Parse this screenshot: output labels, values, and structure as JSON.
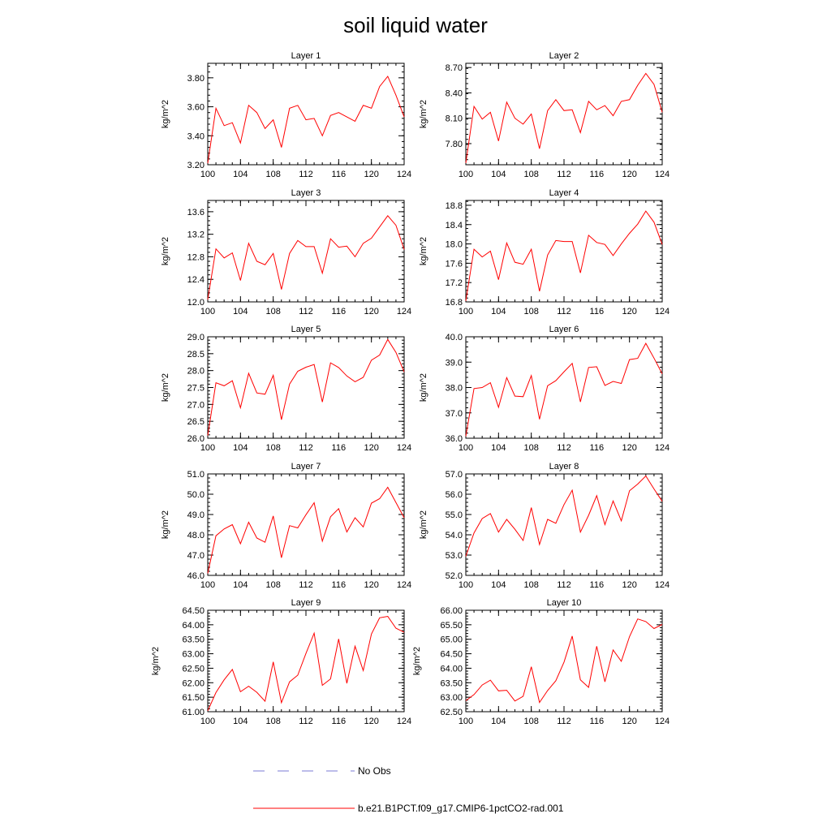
{
  "figure": {
    "title": "soil liquid water"
  },
  "legend": {
    "entries": [
      {
        "label": "No Obs",
        "color": "#7b7bd6",
        "style": "dashed"
      },
      {
        "label": "b.e21.B1PCT.f09_g17.CMIP6-1pctCO2-rad.001",
        "color": "#ff0000",
        "style": "solid"
      }
    ]
  },
  "chart_data": [
    {
      "type": "line",
      "title": "Layer 1",
      "ylabel": "kg/m^2",
      "xlim": [
        100,
        124
      ],
      "xticks": [
        "100",
        "104",
        "108",
        "112",
        "116",
        "120",
        "124"
      ],
      "ylim": [
        3.2,
        3.9
      ],
      "yticks": [
        "3.20",
        "3.40",
        "3.60",
        "3.80"
      ],
      "series": [
        {
          "color": "#ff0000",
          "x": [
            100,
            101,
            102,
            103,
            104,
            105,
            106,
            107,
            108,
            109,
            110,
            111,
            112,
            113,
            114,
            115,
            116,
            117,
            118,
            119,
            120,
            121,
            122,
            123,
            124
          ],
          "values": [
            3.21,
            3.59,
            3.47,
            3.49,
            3.35,
            3.61,
            3.56,
            3.45,
            3.51,
            3.32,
            3.59,
            3.61,
            3.51,
            3.52,
            3.4,
            3.54,
            3.56,
            3.53,
            3.5,
            3.61,
            3.59,
            3.74,
            3.81,
            3.68,
            3.53
          ]
        }
      ]
    },
    {
      "type": "line",
      "title": "Layer 2",
      "ylabel": "kg/m^2",
      "xlim": [
        100,
        124
      ],
      "xticks": [
        "100",
        "104",
        "108",
        "112",
        "116",
        "120",
        "124"
      ],
      "ylim": [
        7.55,
        8.75
      ],
      "yticks": [
        "7.80",
        "8.10",
        "8.40",
        "8.70"
      ],
      "series": [
        {
          "color": "#ff0000",
          "x": [
            100,
            101,
            102,
            103,
            104,
            105,
            106,
            107,
            108,
            109,
            110,
            111,
            112,
            113,
            114,
            115,
            116,
            117,
            118,
            119,
            120,
            121,
            122,
            123,
            124
          ],
          "values": [
            7.57,
            8.24,
            8.09,
            8.17,
            7.83,
            8.29,
            8.1,
            8.03,
            8.15,
            7.74,
            8.19,
            8.32,
            8.19,
            8.2,
            7.93,
            8.3,
            8.2,
            8.25,
            8.13,
            8.3,
            8.32,
            8.49,
            8.63,
            8.5,
            8.17
          ]
        }
      ]
    },
    {
      "type": "line",
      "title": "Layer 3",
      "ylabel": "kg/m^2",
      "xlim": [
        100,
        124
      ],
      "xticks": [
        "100",
        "104",
        "108",
        "112",
        "116",
        "120",
        "124"
      ],
      "ylim": [
        12.0,
        13.8
      ],
      "yticks": [
        "12.0",
        "12.4",
        "12.8",
        "13.2",
        "13.6"
      ],
      "series": [
        {
          "color": "#ff0000",
          "x": [
            100,
            101,
            102,
            103,
            104,
            105,
            106,
            107,
            108,
            109,
            110,
            111,
            112,
            113,
            114,
            115,
            116,
            117,
            118,
            119,
            120,
            121,
            122,
            123,
            124
          ],
          "values": [
            12.04,
            12.94,
            12.78,
            12.87,
            12.38,
            13.04,
            12.72,
            12.66,
            12.86,
            12.22,
            12.86,
            13.09,
            12.98,
            12.98,
            12.51,
            13.12,
            12.97,
            12.99,
            12.8,
            13.04,
            13.13,
            13.33,
            13.53,
            13.36,
            12.93
          ]
        }
      ]
    },
    {
      "type": "line",
      "title": "Layer 4",
      "ylabel": "kg/m^2",
      "xlim": [
        100,
        124
      ],
      "xticks": [
        "100",
        "104",
        "108",
        "112",
        "116",
        "120",
        "124"
      ],
      "ylim": [
        16.8,
        18.9
      ],
      "yticks": [
        "16.8",
        "17.2",
        "17.6",
        "18.0",
        "18.4",
        "18.8"
      ],
      "series": [
        {
          "color": "#ff0000",
          "x": [
            100,
            101,
            102,
            103,
            104,
            105,
            106,
            107,
            108,
            109,
            110,
            111,
            112,
            113,
            114,
            115,
            116,
            117,
            118,
            119,
            120,
            121,
            122,
            123,
            124
          ],
          "values": [
            16.82,
            17.89,
            17.73,
            17.85,
            17.26,
            18.02,
            17.62,
            17.58,
            17.89,
            17.02,
            17.77,
            18.07,
            18.05,
            18.05,
            17.4,
            18.18,
            18.03,
            17.99,
            17.76,
            18.0,
            18.22,
            18.41,
            18.68,
            18.45,
            17.99
          ]
        }
      ]
    },
    {
      "type": "line",
      "title": "Layer 5",
      "ylabel": "kg/m^2",
      "xlim": [
        100,
        124
      ],
      "xticks": [
        "100",
        "104",
        "108",
        "112",
        "116",
        "120",
        "124"
      ],
      "ylim": [
        26.0,
        29.0
      ],
      "yticks": [
        "26.0",
        "26.5",
        "27.0",
        "27.5",
        "28.0",
        "28.5",
        "29.0"
      ],
      "series": [
        {
          "color": "#ff0000",
          "x": [
            100,
            101,
            102,
            103,
            104,
            105,
            106,
            107,
            108,
            109,
            110,
            111,
            112,
            113,
            114,
            115,
            116,
            117,
            118,
            119,
            120,
            121,
            122,
            123,
            124
          ],
          "values": [
            26.08,
            27.64,
            27.55,
            27.7,
            26.9,
            27.92,
            27.34,
            27.3,
            27.86,
            26.55,
            27.6,
            27.98,
            28.1,
            28.18,
            27.07,
            28.23,
            28.09,
            27.84,
            27.67,
            27.8,
            28.31,
            28.46,
            28.92,
            28.54,
            27.96
          ]
        }
      ]
    },
    {
      "type": "line",
      "title": "Layer 6",
      "ylabel": "kg/m^2",
      "xlim": [
        100,
        124
      ],
      "xticks": [
        "100",
        "104",
        "108",
        "112",
        "116",
        "120",
        "124"
      ],
      "ylim": [
        36.0,
        40.0
      ],
      "yticks": [
        "36.0",
        "37.0",
        "38.0",
        "39.0",
        "40.0"
      ],
      "series": [
        {
          "color": "#ff0000",
          "x": [
            100,
            101,
            102,
            103,
            104,
            105,
            106,
            107,
            108,
            109,
            110,
            111,
            112,
            113,
            114,
            115,
            116,
            117,
            118,
            119,
            120,
            121,
            122,
            123,
            124
          ],
          "values": [
            36.08,
            37.96,
            38.0,
            38.19,
            37.22,
            38.39,
            37.66,
            37.64,
            38.47,
            36.75,
            38.07,
            38.27,
            38.62,
            38.95,
            37.43,
            38.79,
            38.82,
            38.08,
            38.24,
            38.16,
            39.1,
            39.15,
            39.74,
            39.16,
            38.54
          ]
        }
      ]
    },
    {
      "type": "line",
      "title": "Layer 7",
      "ylabel": "kg/m^2",
      "xlim": [
        100,
        124
      ],
      "xticks": [
        "100",
        "104",
        "108",
        "112",
        "116",
        "120",
        "124"
      ],
      "ylim": [
        46.0,
        51.0
      ],
      "yticks": [
        "46.0",
        "47.0",
        "48.0",
        "49.0",
        "50.0",
        "51.0"
      ],
      "series": [
        {
          "color": "#ff0000",
          "x": [
            100,
            101,
            102,
            103,
            104,
            105,
            106,
            107,
            108,
            109,
            110,
            111,
            112,
            113,
            114,
            115,
            116,
            117,
            118,
            119,
            120,
            121,
            122,
            123,
            124
          ],
          "values": [
            46.1,
            47.95,
            48.29,
            48.5,
            47.56,
            48.62,
            47.84,
            47.63,
            48.93,
            46.87,
            48.45,
            48.34,
            48.99,
            49.58,
            47.69,
            48.89,
            49.29,
            48.14,
            48.84,
            48.39,
            49.56,
            49.78,
            50.34,
            49.59,
            48.84
          ]
        }
      ]
    },
    {
      "type": "line",
      "title": "Layer 8",
      "ylabel": "kg/m^2",
      "xlim": [
        100,
        124
      ],
      "xticks": [
        "100",
        "104",
        "108",
        "112",
        "116",
        "120",
        "124"
      ],
      "ylim": [
        52.0,
        57.0
      ],
      "yticks": [
        "52.0",
        "53.0",
        "54.0",
        "55.0",
        "56.0",
        "57.0"
      ],
      "series": [
        {
          "color": "#ff0000",
          "x": [
            100,
            101,
            102,
            103,
            104,
            105,
            106,
            107,
            108,
            109,
            110,
            111,
            112,
            113,
            114,
            115,
            116,
            117,
            118,
            119,
            120,
            121,
            122,
            123,
            124
          ],
          "values": [
            52.94,
            54.09,
            54.8,
            55.05,
            54.13,
            54.76,
            54.27,
            53.72,
            55.34,
            53.52,
            54.76,
            54.57,
            55.49,
            56.2,
            54.13,
            54.96,
            55.93,
            54.5,
            55.67,
            54.69,
            56.17,
            56.5,
            56.9,
            56.26,
            55.65
          ]
        }
      ]
    },
    {
      "type": "line",
      "title": "Layer 9",
      "ylabel": "kg/m^2",
      "xlim": [
        100,
        124
      ],
      "xticks": [
        "100",
        "104",
        "108",
        "112",
        "116",
        "120",
        "124"
      ],
      "ylim": [
        61.0,
        64.5
      ],
      "yticks": [
        "61.00",
        "61.50",
        "62.00",
        "62.50",
        "63.00",
        "63.50",
        "64.00",
        "64.50"
      ],
      "series": [
        {
          "color": "#ff0000",
          "x": [
            100,
            101,
            102,
            103,
            104,
            105,
            106,
            107,
            108,
            109,
            110,
            111,
            112,
            113,
            114,
            115,
            116,
            117,
            118,
            119,
            120,
            121,
            122,
            123,
            124
          ],
          "values": [
            61.03,
            61.66,
            62.1,
            62.46,
            61.69,
            61.88,
            61.67,
            61.36,
            62.72,
            61.31,
            62.03,
            62.26,
            63.01,
            63.71,
            61.91,
            62.13,
            63.51,
            61.98,
            63.26,
            62.42,
            63.68,
            64.24,
            64.29,
            63.88,
            63.74
          ]
        }
      ]
    },
    {
      "type": "line",
      "title": "Layer 10",
      "ylabel": "kg/m^2",
      "xlim": [
        100,
        124
      ],
      "xticks": [
        "100",
        "104",
        "108",
        "112",
        "116",
        "120",
        "124"
      ],
      "ylim": [
        62.5,
        66.0
      ],
      "yticks": [
        "62.50",
        "63.00",
        "63.50",
        "64.00",
        "64.50",
        "65.00",
        "65.50",
        "66.00"
      ],
      "series": [
        {
          "color": "#ff0000",
          "x": [
            100,
            101,
            102,
            103,
            104,
            105,
            106,
            107,
            108,
            109,
            110,
            111,
            112,
            113,
            114,
            115,
            116,
            117,
            118,
            119,
            120,
            121,
            122,
            123,
            124
          ],
          "values": [
            62.88,
            63.09,
            63.42,
            63.59,
            63.22,
            63.24,
            62.87,
            63.03,
            64.05,
            62.82,
            63.23,
            63.57,
            64.21,
            65.11,
            63.6,
            63.34,
            64.76,
            63.53,
            64.63,
            64.24,
            65.09,
            65.7,
            65.61,
            65.37,
            65.51
          ]
        }
      ]
    }
  ]
}
